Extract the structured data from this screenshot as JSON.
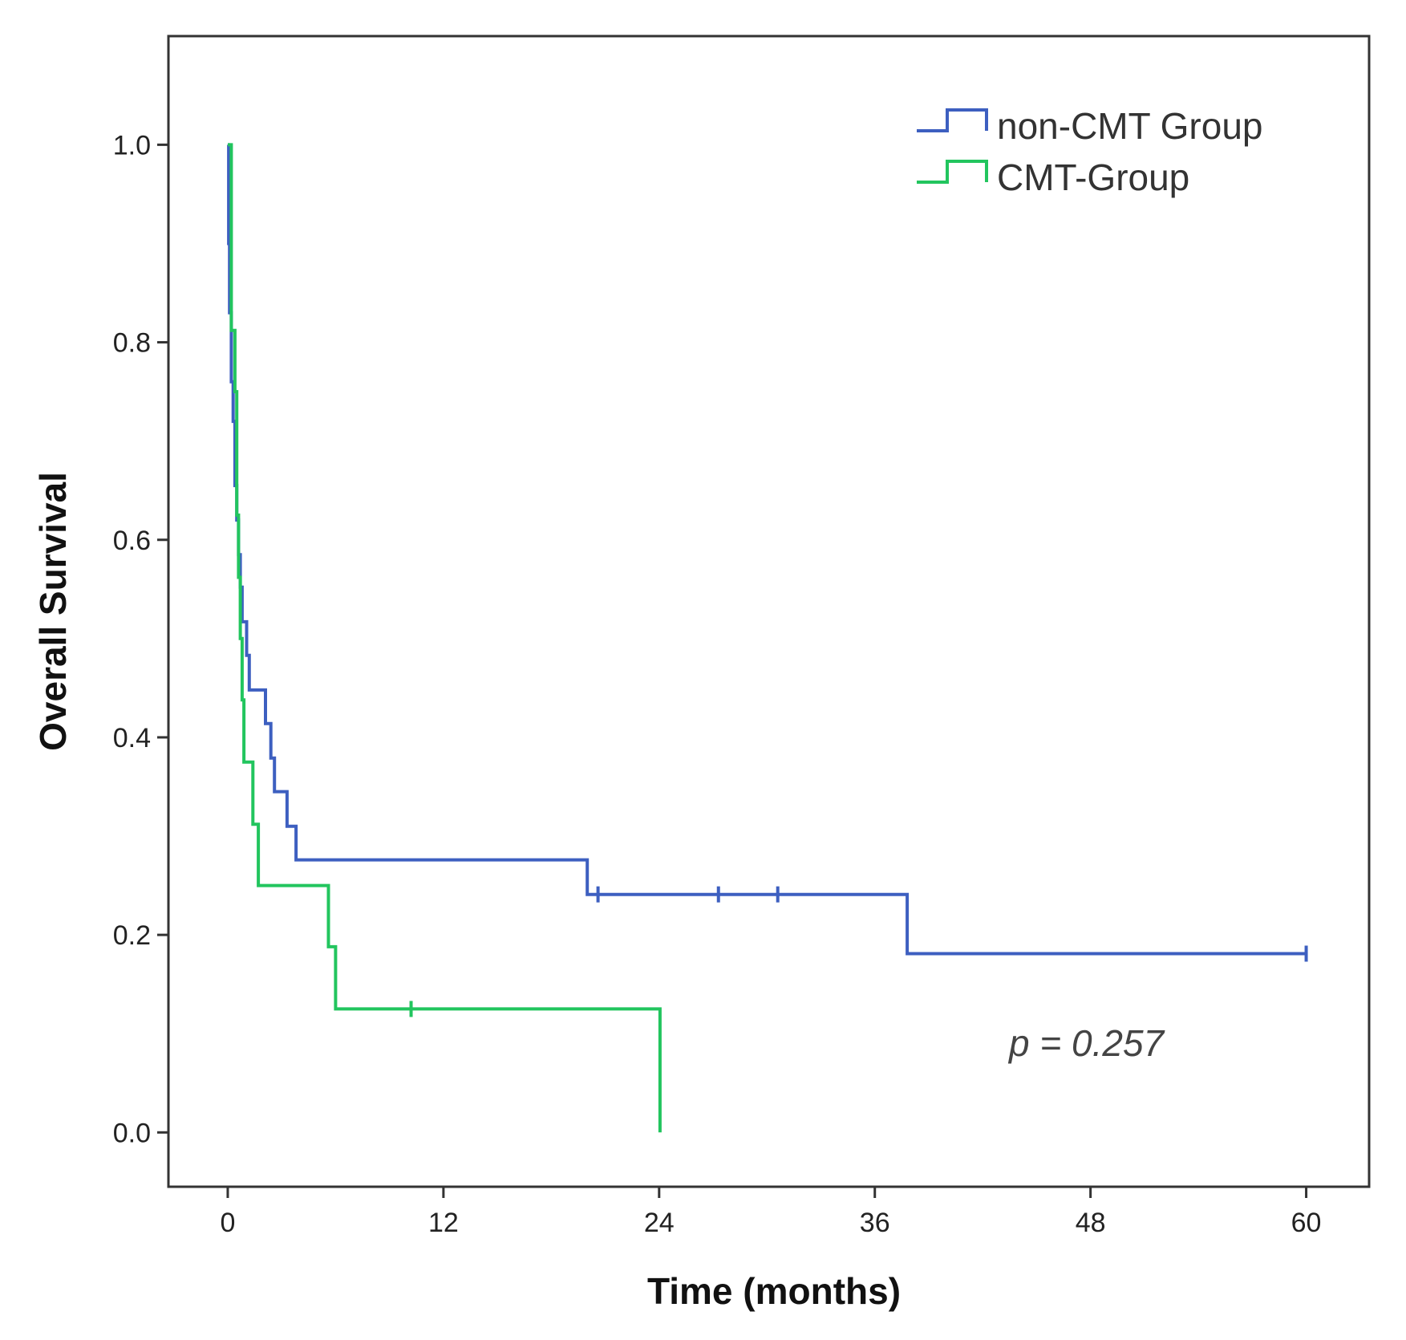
{
  "chart_data": {
    "type": "line",
    "subtype": "kaplan-meier step",
    "title": "",
    "xlabel": "Time (months)",
    "ylabel": "Overall Survival",
    "xlim": [
      -3.3,
      63.5
    ],
    "ylim": [
      -0.055,
      1.11
    ],
    "xticks": [
      0,
      12,
      24,
      36,
      48,
      60
    ],
    "yticks": [
      0.0,
      0.2,
      0.4,
      0.6,
      0.8,
      1.0
    ],
    "xtick_labels": [
      "0",
      "12",
      "24",
      "36",
      "48",
      "60"
    ],
    "ytick_labels": [
      "0.0",
      "0.2",
      "0.4",
      "0.6",
      "0.8",
      "1.0"
    ],
    "grid": false,
    "legend_position": "top-right",
    "annotation": "p = 0.257",
    "series": [
      {
        "name": "non-CMT Group",
        "color": "#3d5fc0",
        "steps": [
          [
            0,
            1.0
          ],
          [
            0.05,
            0.9
          ],
          [
            0.1,
            0.83
          ],
          [
            0.2,
            0.76
          ],
          [
            0.3,
            0.72
          ],
          [
            0.4,
            0.655
          ],
          [
            0.5,
            0.62
          ],
          [
            0.6,
            0.585
          ],
          [
            0.7,
            0.552
          ],
          [
            0.8,
            0.517
          ],
          [
            1.0,
            0.517
          ],
          [
            1.05,
            0.483
          ],
          [
            1.2,
            0.448
          ],
          [
            2.0,
            0.448
          ],
          [
            2.1,
            0.414
          ],
          [
            2.4,
            0.379
          ],
          [
            2.6,
            0.345
          ],
          [
            3.2,
            0.345
          ],
          [
            3.3,
            0.31
          ],
          [
            3.7,
            0.31
          ],
          [
            3.8,
            0.276
          ],
          [
            19.9,
            0.276
          ],
          [
            20.0,
            0.241
          ],
          [
            37.7,
            0.241
          ],
          [
            37.8,
            0.181
          ],
          [
            60.0,
            0.181
          ]
        ],
        "censored": [
          [
            20.6,
            0.241
          ],
          [
            27.3,
            0.241
          ],
          [
            30.6,
            0.241
          ],
          [
            60.0,
            0.181
          ]
        ]
      },
      {
        "name": "CMT-Group",
        "color": "#22c55e",
        "steps": [
          [
            0,
            1.0
          ],
          [
            0.2,
            0.812
          ],
          [
            0.4,
            0.75
          ],
          [
            0.5,
            0.625
          ],
          [
            0.6,
            0.562
          ],
          [
            0.7,
            0.5
          ],
          [
            0.8,
            0.438
          ],
          [
            0.9,
            0.375
          ],
          [
            1.3,
            0.375
          ],
          [
            1.4,
            0.312
          ],
          [
            1.6,
            0.312
          ],
          [
            1.7,
            0.25
          ],
          [
            5.5,
            0.25
          ],
          [
            5.6,
            0.188
          ],
          [
            5.9,
            0.188
          ],
          [
            6.0,
            0.125
          ],
          [
            24.0,
            0.125
          ],
          [
            24.05,
            0.0
          ]
        ],
        "censored": [
          [
            10.2,
            0.125
          ]
        ]
      }
    ]
  }
}
